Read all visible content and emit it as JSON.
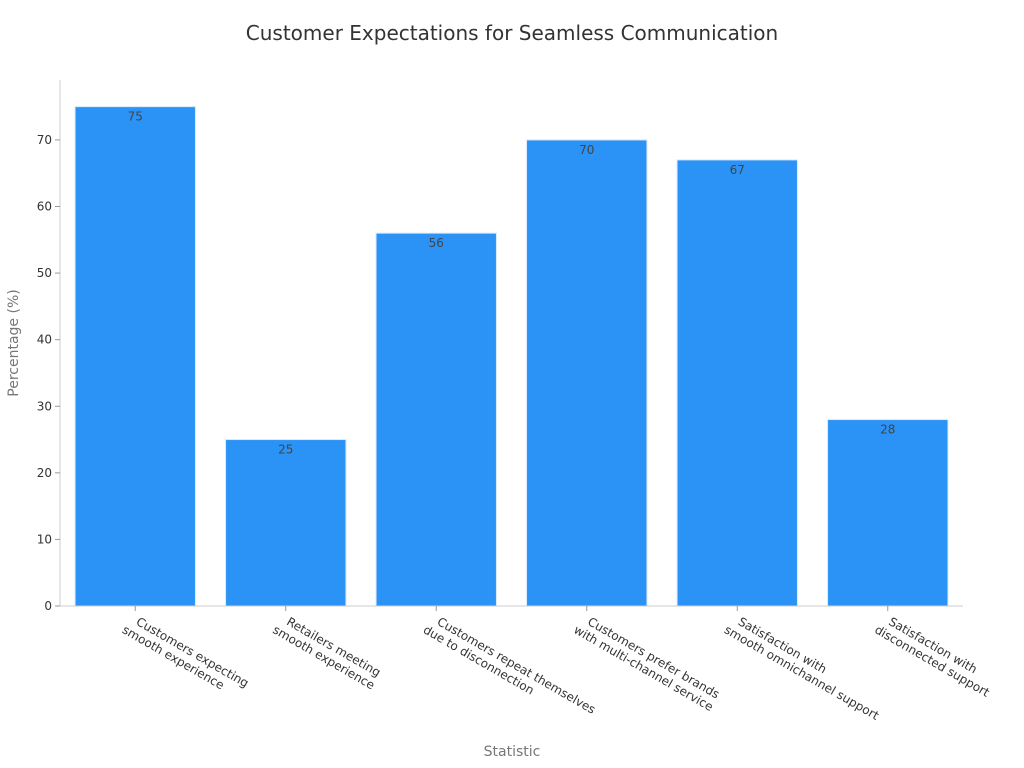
{
  "chart_data": {
    "type": "bar",
    "title": "Customer Expectations for Seamless Communication",
    "xlabel": "Statistic",
    "ylabel": "Percentage (%)",
    "ylim": [
      0,
      79
    ],
    "yticks": [
      0,
      10,
      20,
      30,
      40,
      50,
      60,
      70
    ],
    "grid": false,
    "bar_color": "#2b93f6",
    "categories": [
      [
        "Customers expecting",
        "smooth experience"
      ],
      [
        "Retailers meeting",
        "smooth experience"
      ],
      [
        "Customers repeat themselves",
        "due to disconnection"
      ],
      [
        "Customers prefer brands",
        "with multi-channel service"
      ],
      [
        "Satisfaction with",
        "smooth omnichannel support"
      ],
      [
        "Satisfaction with",
        "disconnected support"
      ]
    ],
    "values": [
      75,
      25,
      56,
      70,
      67,
      28
    ]
  }
}
